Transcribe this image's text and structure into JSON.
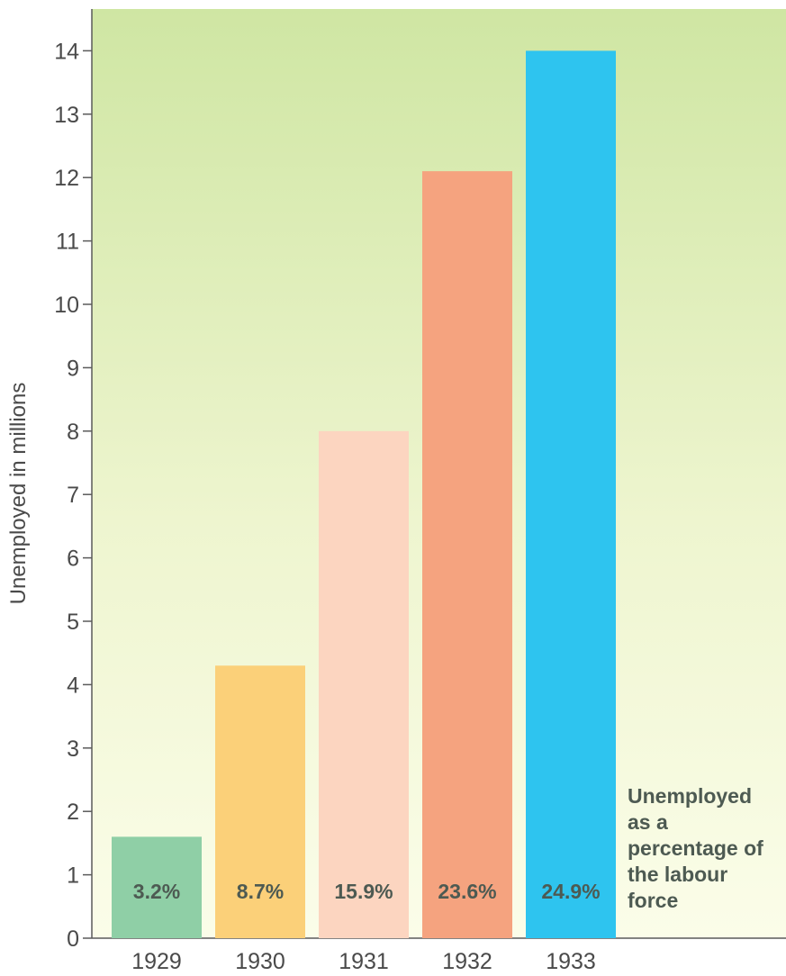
{
  "chart_data": {
    "type": "bar",
    "title": "",
    "xlabel": "",
    "ylabel": "Unemployed in millions",
    "ylim": [
      0,
      14
    ],
    "yticks": [
      0,
      1,
      2,
      3,
      4,
      5,
      6,
      7,
      8,
      9,
      10,
      11,
      12,
      13,
      14
    ],
    "categories": [
      "1929",
      "1930",
      "1931",
      "1932",
      "1933"
    ],
    "values": [
      1.6,
      4.3,
      8.0,
      12.1,
      14.0
    ],
    "bar_labels": [
      "3.2%",
      "8.7%",
      "15.9%",
      "23.6%",
      "24.9%"
    ],
    "bar_colors": [
      "#8fcfa6",
      "#fbd079",
      "#fcd5c0",
      "#f5a37f",
      "#2ec4ef"
    ],
    "background_gradient": [
      "#cfe6a3",
      "#fbfde9"
    ],
    "annotation": [
      "Unemployed",
      "as a",
      "percentage of",
      "the labour",
      "force"
    ],
    "grid": false
  }
}
